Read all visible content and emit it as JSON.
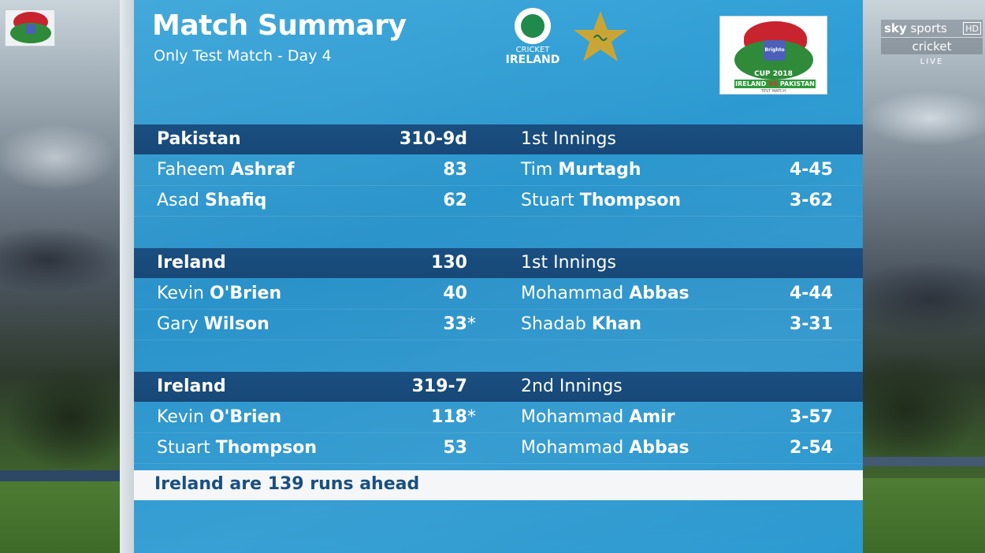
{
  "header": {
    "title": "Match Summary",
    "subtitle": "Only Test Match - Day 4"
  },
  "logos": {
    "ireland": {
      "line1": "CRICKET",
      "line2": "IRELAND",
      "icon": "shamrock-icon",
      "color": "#1f8a4c"
    },
    "pakistan": {
      "icon": "pakistan-star-icon",
      "color": "#c9a536"
    },
    "cup": {
      "emblem": "Brighto",
      "title": "CUP 2018",
      "team_a": "IRELAND",
      "vs": "VS",
      "team_b": "PAKISTAN",
      "tag": "TEST MATCH"
    }
  },
  "innings": [
    {
      "team": "Pakistan",
      "score": "310-9d",
      "innings_label": "1st Innings",
      "rows": [
        {
          "bat_first": "Faheem",
          "bat_last": "Ashraf",
          "runs": "83",
          "not_out": "",
          "bowl_first": "Tim",
          "bowl_last": "Murtagh",
          "figures": "4-45"
        },
        {
          "bat_first": "Asad",
          "bat_last": "Shafiq",
          "runs": "62",
          "not_out": "",
          "bowl_first": "Stuart",
          "bowl_last": "Thompson",
          "figures": "3-62"
        }
      ]
    },
    {
      "team": "Ireland",
      "score": "130",
      "innings_label": "1st Innings",
      "rows": [
        {
          "bat_first": "Kevin",
          "bat_last": "O'Brien",
          "runs": "40",
          "not_out": "",
          "bowl_first": "Mohammad",
          "bowl_last": "Abbas",
          "figures": "4-44"
        },
        {
          "bat_first": "Gary",
          "bat_last": "Wilson",
          "runs": "33",
          "not_out": "*",
          "bowl_first": "Shadab",
          "bowl_last": "Khan",
          "figures": "3-31"
        }
      ]
    },
    {
      "team": "Ireland",
      "score": "319-7",
      "innings_label": "2nd Innings",
      "rows": [
        {
          "bat_first": "Kevin",
          "bat_last": "O'Brien",
          "runs": "118",
          "not_out": "*",
          "bowl_first": "Mohammad",
          "bowl_last": "Amir",
          "figures": "3-57"
        },
        {
          "bat_first": "Stuart",
          "bat_last": "Thompson",
          "runs": "53",
          "not_out": "",
          "bowl_first": "Mohammad",
          "bowl_last": "Abbas",
          "figures": "2-54"
        }
      ]
    }
  ],
  "summary": "Ireland are 139 runs ahead",
  "broadcaster": {
    "brand_a": "sky",
    "brand_b": "sports",
    "hd": "HD",
    "channel": "cricket",
    "live": "LIVE"
  },
  "colors": {
    "panel": "#2a92c9",
    "header_band": "#1a4f80",
    "summary_text": "#1a4f80"
  }
}
